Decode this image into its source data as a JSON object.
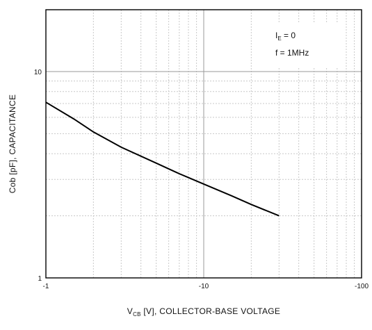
{
  "chart_data": {
    "type": "line",
    "xlabel_main": "V",
    "xlabel_sub": "CB",
    "xlabel_rest": " [V], COLLECTOR-BASE VOLTAGE",
    "ylabel": "Cob [pF], CAPACITANCE",
    "x_scale": "log",
    "y_scale": "log",
    "xlim": [
      -1,
      -100
    ],
    "ylim": [
      1,
      20
    ],
    "x_ticks": [
      {
        "value": -1,
        "label": "-1"
      },
      {
        "value": -10,
        "label": "-10"
      },
      {
        "value": -100,
        "label": "-100"
      }
    ],
    "y_ticks": [
      {
        "value": 1,
        "label": "1"
      },
      {
        "value": 10,
        "label": "10"
      }
    ],
    "grid": true,
    "annotations": {
      "line1_main": "I",
      "line1_sub": "E",
      "line1_rest": " = 0",
      "line2": "f = 1MHz"
    },
    "series": [
      {
        "x": [
          -1,
          -1.5,
          -2,
          -3,
          -5,
          -7,
          -10,
          -15,
          -20,
          -30
        ],
        "y": [
          7.1,
          5.9,
          5.1,
          4.3,
          3.6,
          3.2,
          2.85,
          2.5,
          2.27,
          2.0
        ],
        "color": "#000000"
      }
    ]
  }
}
